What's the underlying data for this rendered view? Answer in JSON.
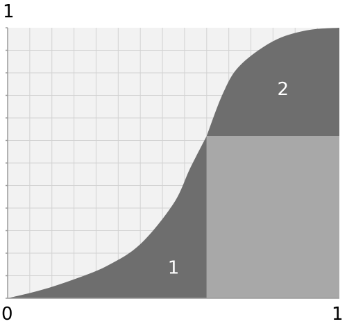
{
  "chart_data": {
    "type": "area",
    "x_ticks": {
      "min": "0",
      "max": "1"
    },
    "y_ticks": {
      "max": "1"
    },
    "xlim": [
      0,
      1
    ],
    "ylim": [
      0,
      1
    ],
    "grid": true,
    "grid_divisions": {
      "x": 15,
      "y": 12
    },
    "curve": {
      "x": [
        0,
        0.1,
        0.2,
        0.3,
        0.4,
        0.5,
        0.55,
        0.6,
        0.65,
        0.7,
        0.8,
        0.9,
        1.0
      ],
      "y": [
        0,
        0.03,
        0.07,
        0.12,
        0.2,
        0.35,
        0.48,
        0.6,
        0.76,
        0.86,
        0.95,
        0.99,
        1.0
      ]
    },
    "split": {
      "x": 0.6,
      "y": 0.6
    },
    "regions": [
      {
        "label": "1",
        "label_pos": {
          "x": 0.5,
          "y": 0.11
        }
      },
      {
        "label": "2",
        "label_pos": {
          "x": 0.83,
          "y": 0.77
        }
      }
    ],
    "colors": {
      "background": "#f2f2f2",
      "grid": "#d2d2d2",
      "axis": "#9a9a9a",
      "region_dark": "#6e6e6e",
      "region_light": "#a8a8a8",
      "region_label": "#ffffff"
    }
  }
}
